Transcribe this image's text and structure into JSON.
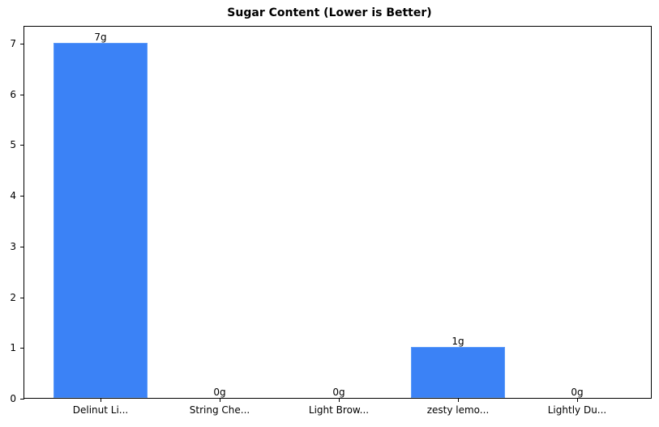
{
  "chart_data": {
    "type": "bar",
    "title": "Sugar Content (Lower is Better)",
    "xlabel": "",
    "ylabel": "",
    "categories": [
      "Delinut Li...",
      "String Che...",
      "Light Brow...",
      "zesty lemo...",
      "Lightly Du..."
    ],
    "values": [
      7,
      0,
      0,
      1,
      0
    ],
    "value_labels": [
      "7g",
      "0g",
      "0g",
      "1g",
      "0g"
    ],
    "yticks": [
      "0",
      "1",
      "2",
      "3",
      "4",
      "5",
      "6",
      "7"
    ],
    "ylim": [
      0,
      7.35
    ],
    "grid": false,
    "legend": null,
    "bar_color": "#3b82f6"
  }
}
